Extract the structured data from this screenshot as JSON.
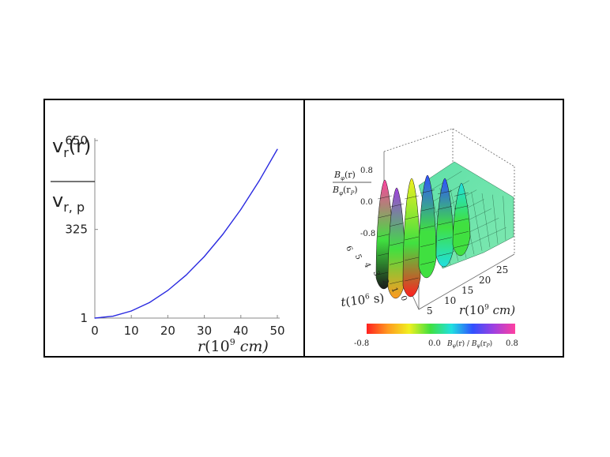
{
  "chart_data": [
    {
      "type": "line",
      "title": "",
      "xlabel": "r(10^9 cm)",
      "xlabel_parts": {
        "var": "r",
        "open": "(10",
        "exp": "9",
        "unit": " cm)"
      },
      "ylabel": "v_r(r) / v_r,p",
      "ylabel_parts": {
        "num": "v",
        "num_sub": "r",
        "num_arg": "(r)",
        "den": "v",
        "den_sub": "r, p"
      },
      "x_ticks": [
        "0",
        "10",
        "20",
        "30",
        "40",
        "50"
      ],
      "x_tick_values": [
        0,
        10,
        20,
        30,
        40,
        50
      ],
      "y_ticks": [
        "1",
        "325",
        "650"
      ],
      "y_tick_values": [
        1,
        325,
        650
      ],
      "xlim": [
        0,
        50
      ],
      "ylim": [
        1,
        650
      ],
      "series": [
        {
          "name": "v_r",
          "color": "#2a2ae0",
          "x": [
            0,
            5,
            10,
            15,
            20,
            25,
            30,
            35,
            40,
            45,
            50
          ],
          "y": [
            1,
            8,
            27,
            58,
            102,
            158,
            226,
            306,
            398,
            502,
            618
          ]
        }
      ]
    },
    {
      "type": "surface",
      "title": "",
      "zlabel": "B_phi(r) / B_phi(r_p)",
      "zlabel_parts": {
        "num": "B",
        "num_sub": "φ",
        "num_arg": "(r)",
        "den": "B",
        "den_sub": "φ",
        "den_arg": "(r",
        "den_arg_sub": "P",
        "den_close": ")"
      },
      "z_ticks": [
        "0.8",
        "0.0",
        "-0.8"
      ],
      "z_tick_values": [
        0.8,
        0.0,
        -0.8
      ],
      "y_axis_label_parts": {
        "var": "t",
        "open": "(10",
        "exp": "6",
        "unit": " s)"
      },
      "y_ticks": [
        "6",
        "5",
        "4",
        "3",
        "2",
        "1",
        "0"
      ],
      "y_tick_values": [
        6,
        5,
        4,
        3,
        2,
        1,
        0
      ],
      "x_axis_label_parts": {
        "var": "r",
        "open": "(10",
        "exp": "9",
        "unit": " cm)"
      },
      "x_ticks": [
        "5",
        "10",
        "15",
        "20",
        "25"
      ],
      "x_tick_values": [
        5,
        10,
        15,
        20,
        25
      ],
      "colorbar": {
        "min_label": "-0.8",
        "mid_label": "0.0",
        "max_label": "0.8",
        "caption": "B_phi(r) / B_phi(r_P)",
        "caption_parts": {
          "a": "B",
          "a_sub": "φ",
          "a_arg": "(r) / ",
          "b": "B",
          "b_sub": "φ",
          "b_arg": "(r",
          "b_arg_sub": "P",
          "b_close": ")"
        },
        "colors": [
          "#ff2020",
          "#ff9a20",
          "#f0f020",
          "#40e040",
          "#20e0e0",
          "#3050ff",
          "#a040e0",
          "#ff40a0"
        ]
      }
    }
  ]
}
